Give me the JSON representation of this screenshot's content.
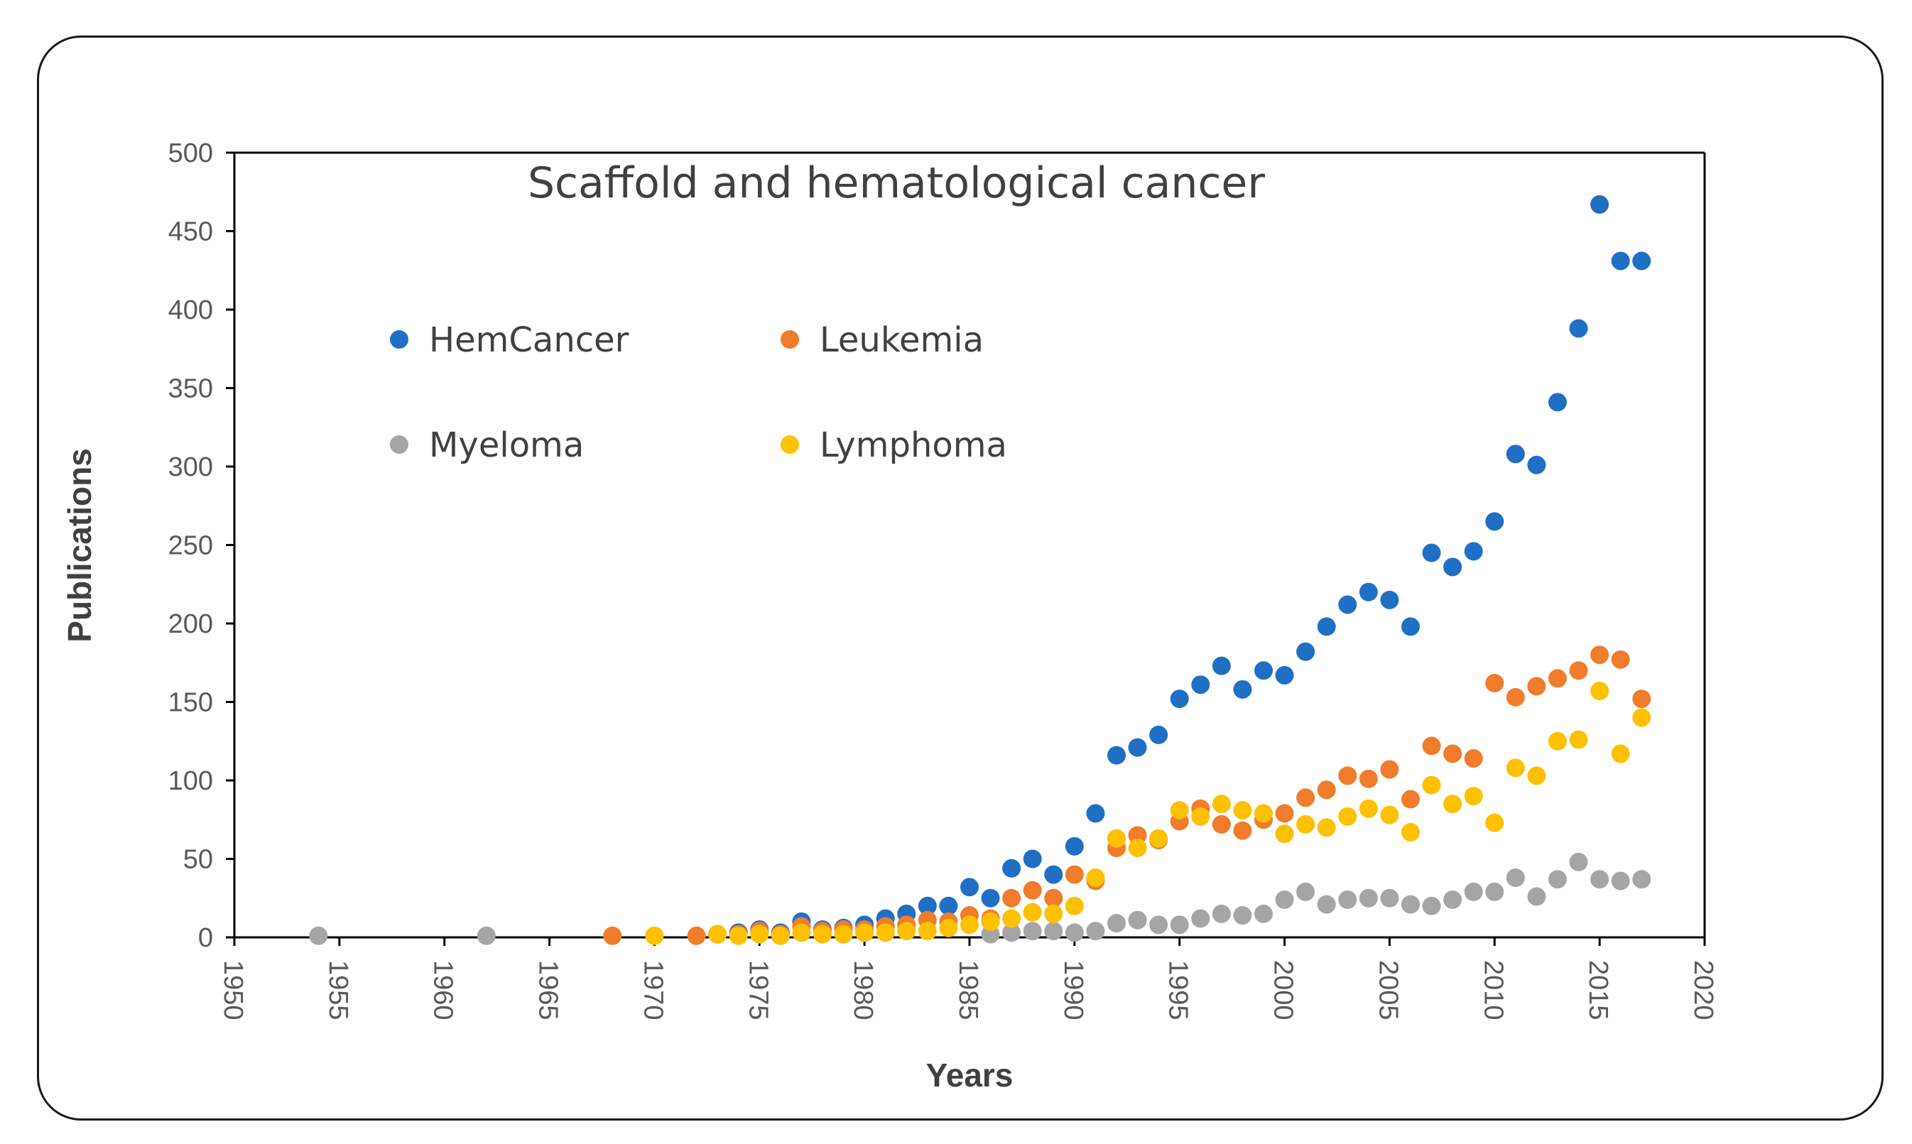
{
  "chart_data": {
    "type": "scatter",
    "title": "Scaffold and hematological cancer",
    "xlabel": "Years",
    "ylabel": "Publications",
    "xlim": [
      1950,
      2020
    ],
    "ylim": [
      0,
      500
    ],
    "xticks": [
      "1950",
      "1955",
      "1960",
      "1965",
      "1970",
      "1975",
      "1980",
      "1985",
      "1990",
      "1995",
      "2000",
      "2005",
      "2010",
      "2015",
      "2020"
    ],
    "yticks": [
      "0",
      "50",
      "100",
      "150",
      "200",
      "250",
      "300",
      "350",
      "400",
      "450",
      "500"
    ],
    "legend_position": "upper-left",
    "series": [
      {
        "name": "HemCancer",
        "color": "#1f6fc4",
        "x": [
          1973,
          1974,
          1975,
          1976,
          1977,
          1978,
          1979,
          1980,
          1981,
          1982,
          1983,
          1984,
          1985,
          1986,
          1987,
          1988,
          1989,
          1990,
          1991,
          1992,
          1993,
          1994,
          1995,
          1996,
          1997,
          1998,
          1999,
          2000,
          2001,
          2002,
          2003,
          2004,
          2005,
          2006,
          2007,
          2008,
          2009,
          2010,
          2011,
          2012,
          2013,
          2014,
          2015,
          2016,
          2017
        ],
        "y": [
          2,
          3,
          5,
          3,
          10,
          5,
          6,
          8,
          12,
          15,
          20,
          20,
          32,
          25,
          44,
          50,
          40,
          58,
          79,
          116,
          121,
          129,
          152,
          161,
          173,
          158,
          170,
          167,
          182,
          198,
          212,
          220,
          215,
          198,
          245,
          236,
          246,
          265,
          308,
          301,
          341,
          388,
          467,
          431,
          431
        ]
      },
      {
        "name": "Leukemia",
        "color": "#f07c2c",
        "x": [
          1968,
          1972,
          1973,
          1974,
          1975,
          1976,
          1977,
          1978,
          1979,
          1980,
          1981,
          1982,
          1983,
          1984,
          1985,
          1986,
          1987,
          1988,
          1989,
          1990,
          1991,
          1992,
          1993,
          1994,
          1995,
          1996,
          1997,
          1998,
          1999,
          2000,
          2001,
          2002,
          2003,
          2004,
          2005,
          2006,
          2007,
          2008,
          2009,
          2010,
          2011,
          2012,
          2013,
          2014,
          2015,
          2016,
          2017
        ],
        "y": [
          1,
          1,
          2,
          2,
          4,
          2,
          7,
          4,
          5,
          5,
          7,
          8,
          11,
          10,
          14,
          12,
          25,
          30,
          25,
          40,
          36,
          57,
          65,
          62,
          74,
          82,
          72,
          68,
          75,
          79,
          89,
          94,
          103,
          101,
          107,
          88,
          122,
          117,
          114,
          162,
          153,
          160,
          165,
          170,
          180,
          177,
          152
        ]
      },
      {
        "name": "Myeloma",
        "color": "#a5a5a5",
        "x": [
          1954,
          1962,
          1986,
          1987,
          1988,
          1989,
          1990,
          1991,
          1992,
          1993,
          1994,
          1995,
          1996,
          1997,
          1998,
          1999,
          2000,
          2001,
          2002,
          2003,
          2004,
          2005,
          2006,
          2007,
          2008,
          2009,
          2010,
          2011,
          2012,
          2013,
          2014,
          2015,
          2016,
          2017
        ],
        "y": [
          1,
          1,
          2,
          3,
          4,
          4,
          3,
          4,
          9,
          11,
          8,
          8,
          12,
          15,
          14,
          15,
          24,
          29,
          21,
          24,
          25,
          25,
          21,
          20,
          24,
          29,
          29,
          38,
          26,
          37,
          48,
          37,
          36,
          37
        ]
      },
      {
        "name": "Lymphoma",
        "color": "#ffc000",
        "x": [
          1970,
          1973,
          1974,
          1975,
          1976,
          1977,
          1978,
          1979,
          1980,
          1981,
          1982,
          1983,
          1984,
          1985,
          1986,
          1987,
          1988,
          1989,
          1990,
          1991,
          1992,
          1993,
          1994,
          1995,
          1996,
          1997,
          1998,
          1999,
          2000,
          2001,
          2002,
          2003,
          2004,
          2005,
          2006,
          2007,
          2008,
          2009,
          2010,
          2011,
          2012,
          2013,
          2014,
          2015,
          2016,
          2017
        ],
        "y": [
          1,
          2,
          1,
          2,
          1,
          3,
          2,
          2,
          3,
          3,
          4,
          4,
          6,
          8,
          10,
          12,
          16,
          15,
          20,
          38,
          63,
          57,
          63,
          81,
          77,
          85,
          81,
          79,
          66,
          72,
          70,
          77,
          82,
          78,
          67,
          97,
          85,
          90,
          73,
          108,
          103,
          125,
          126,
          157,
          117,
          140
        ]
      }
    ]
  }
}
